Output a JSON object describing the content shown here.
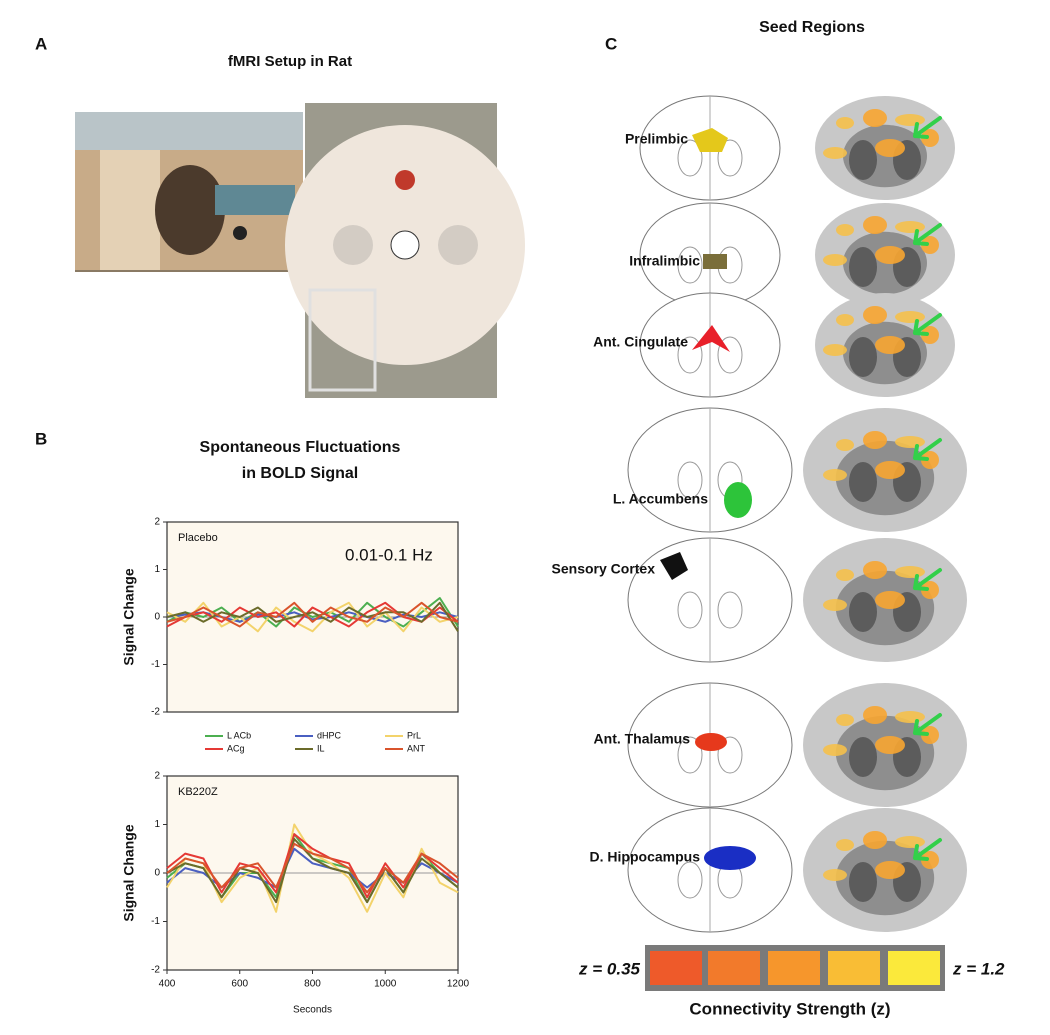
{
  "panels": {
    "A": {
      "label": "A",
      "title": "fMRI Setup in Rat"
    },
    "B": {
      "label": "B",
      "title_lines": [
        "Spontaneous Fluctuations",
        "in BOLD Signal"
      ]
    },
    "C": {
      "label": "C",
      "title": "Seed Regions",
      "regions": [
        "Prelimbic",
        "Infralimbic",
        "Ant. Cingulate",
        "L. Accumbens",
        "Sensory Cortex",
        "Ant. Thalamus",
        "D. Hippocampus"
      ],
      "colorbar": {
        "min_label": "z = 0.35",
        "max_label": "z = 1.2",
        "title": "Connectivity Strength (z)"
      }
    }
  },
  "chart_data": [
    {
      "type": "line",
      "annotations": [
        "Placebo",
        "0.01-0.1 Hz"
      ],
      "ylabel": "Signal Change",
      "x": [
        400,
        450,
        500,
        550,
        600,
        650,
        700,
        750,
        800,
        850,
        900,
        950,
        1000,
        1050,
        1100,
        1150,
        1200
      ],
      "xlim": [
        400,
        1200
      ],
      "ylim": [
        -2,
        2
      ],
      "yticks": [
        -2,
        -1,
        0,
        1,
        2
      ],
      "series": [
        {
          "name": "L ACb",
          "color": "#4caf50",
          "values": [
            -0.1,
            0.1,
            0.0,
            0.2,
            -0.1,
            0.1,
            -0.2,
            0.2,
            0.0,
            0.1,
            -0.1,
            0.3,
            0.0,
            -0.2,
            0.1,
            0.4,
            -0.2
          ]
        },
        {
          "name": "dHPC",
          "color": "#4a5fc1",
          "values": [
            0.0,
            0.05,
            0.1,
            0.0,
            -0.1,
            0.05,
            0.0,
            0.1,
            -0.05,
            0.0,
            0.1,
            0.0,
            -0.1,
            0.05,
            0.0,
            0.1,
            0.0
          ]
        },
        {
          "name": "PrL",
          "color": "#f3d36b",
          "values": [
            0.1,
            -0.1,
            0.3,
            -0.2,
            0.0,
            -0.3,
            0.2,
            -0.1,
            -0.3,
            0.1,
            0.3,
            -0.2,
            0.1,
            -0.3,
            0.2,
            -0.1,
            0.0
          ]
        },
        {
          "name": "ACg",
          "color": "#e53935",
          "values": [
            -0.2,
            0.0,
            0.1,
            -0.1,
            0.2,
            0.0,
            0.1,
            -0.2,
            0.2,
            0.0,
            -0.2,
            0.1,
            0.3,
            0.0,
            -0.1,
            0.2,
            -0.1
          ]
        },
        {
          "name": "IL",
          "color": "#6b6b2a",
          "values": [
            0.0,
            0.1,
            -0.1,
            0.1,
            0.0,
            0.2,
            -0.1,
            0.0,
            0.1,
            -0.1,
            0.2,
            0.0,
            0.1,
            0.1,
            -0.1,
            0.3,
            -0.3
          ]
        },
        {
          "name": "ANT",
          "color": "#d9542c",
          "values": [
            -0.1,
            0.0,
            0.2,
            0.0,
            -0.2,
            0.1,
            0.0,
            0.3,
            -0.1,
            0.2,
            0.0,
            -0.1,
            0.2,
            0.0,
            0.3,
            0.0,
            -0.1
          ]
        }
      ]
    },
    {
      "type": "line",
      "annotations": [
        "KB220Z"
      ],
      "ylabel": "Signal Change",
      "xlabel": "Seconds",
      "x": [
        400,
        450,
        500,
        550,
        600,
        650,
        700,
        750,
        800,
        850,
        900,
        950,
        1000,
        1050,
        1100,
        1150,
        1200
      ],
      "xlim": [
        400,
        1200
      ],
      "ylim": [
        -2,
        2
      ],
      "yticks": [
        -2,
        -1,
        0,
        1,
        2
      ],
      "xticks": [
        400,
        600,
        800,
        1000,
        1200
      ],
      "series": [
        {
          "color": "#4caf50",
          "values": [
            -0.1,
            0.2,
            0.1,
            -0.5,
            0.0,
            0.0,
            -0.5,
            0.8,
            0.3,
            0.2,
            0.1,
            -0.6,
            0.1,
            -0.4,
            0.4,
            0.0,
            -0.3
          ]
        },
        {
          "color": "#4a5fc1",
          "values": [
            -0.2,
            0.1,
            0.0,
            -0.3,
            0.0,
            -0.1,
            -0.3,
            0.5,
            0.2,
            0.1,
            0.0,
            -0.3,
            0.0,
            -0.2,
            0.2,
            0.0,
            -0.2
          ]
        },
        {
          "color": "#f3d36b",
          "values": [
            -0.3,
            0.3,
            0.2,
            -0.6,
            -0.1,
            0.1,
            -0.8,
            1.0,
            0.4,
            0.2,
            -0.1,
            -0.8,
            0.0,
            -0.5,
            0.5,
            -0.2,
            -0.4
          ]
        },
        {
          "color": "#e53935",
          "values": [
            0.1,
            0.4,
            0.3,
            -0.4,
            0.2,
            0.1,
            -0.4,
            0.8,
            0.5,
            0.3,
            0.2,
            -0.5,
            0.2,
            -0.3,
            0.4,
            0.1,
            -0.2
          ]
        },
        {
          "color": "#6b6b2a",
          "values": [
            0.0,
            0.2,
            0.1,
            -0.5,
            0.1,
            0.0,
            -0.6,
            0.7,
            0.3,
            0.1,
            0.0,
            -0.6,
            0.1,
            -0.4,
            0.3,
            0.0,
            -0.3
          ]
        },
        {
          "color": "#d9542c",
          "values": [
            0.0,
            0.3,
            0.2,
            -0.3,
            0.1,
            0.2,
            -0.3,
            0.6,
            0.4,
            0.3,
            0.1,
            -0.4,
            0.1,
            -0.2,
            0.4,
            0.2,
            -0.1
          ]
        }
      ]
    }
  ]
}
